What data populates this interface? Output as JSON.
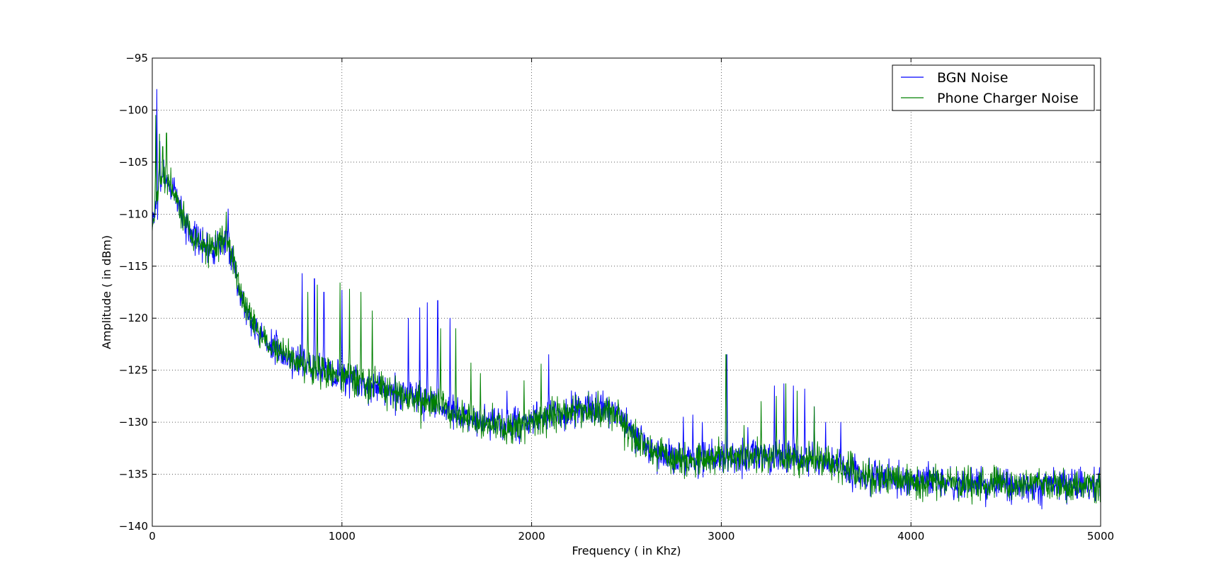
{
  "chart_data": {
    "type": "line",
    "xlabel": "Frequency ( in Khz)",
    "ylabel": "Amplitude ( in dBm)",
    "xlim": [
      0,
      5000
    ],
    "ylim": [
      -140,
      -95
    ],
    "xticks": [
      0,
      1000,
      2000,
      3000,
      4000,
      5000
    ],
    "xtick_labels": [
      "0",
      "1000",
      "2000",
      "3000",
      "4000",
      "5000"
    ],
    "yticks": [
      -95,
      -100,
      -105,
      -110,
      -115,
      -120,
      -125,
      -130,
      -135,
      -140
    ],
    "ytick_labels": [
      "−95",
      "−100",
      "−105",
      "−110",
      "−115",
      "−120",
      "−125",
      "−130",
      "−135",
      "−140"
    ],
    "grid": true,
    "legend_position": "top-right",
    "baseline": {
      "x": [
        0,
        20,
        40,
        60,
        80,
        100,
        130,
        160,
        200,
        240,
        280,
        300,
        330,
        360,
        390,
        410,
        430,
        450,
        480,
        520,
        560,
        600,
        650,
        700,
        750,
        800,
        850,
        900,
        950,
        1000,
        1050,
        1100,
        1150,
        1200,
        1250,
        1300,
        1350,
        1400,
        1450,
        1500,
        1550,
        1600,
        1650,
        1700,
        1750,
        1800,
        1850,
        1900,
        1950,
        2000,
        2050,
        2100,
        2150,
        2200,
        2250,
        2300,
        2350,
        2400,
        2450,
        2500,
        2550,
        2600,
        2650,
        2700,
        2750,
        2800,
        2850,
        2900,
        2950,
        3000,
        3100,
        3200,
        3300,
        3400,
        3500,
        3600,
        3700,
        3800,
        3900,
        4000,
        4100,
        4200,
        4300,
        4400,
        4500,
        4600,
        4700,
        4800,
        4900,
        5000
      ],
      "y": [
        -111,
        -109,
        -107,
        -106.5,
        -107,
        -107.5,
        -108.5,
        -110,
        -111.5,
        -112.5,
        -113,
        -113.2,
        -113,
        -112.8,
        -112.5,
        -113,
        -114.5,
        -116.5,
        -118.5,
        -120.2,
        -121.5,
        -122.3,
        -123,
        -123.6,
        -124,
        -124.3,
        -124.7,
        -125,
        -125.3,
        -125.6,
        -125.9,
        -126.1,
        -126.4,
        -126.6,
        -126.9,
        -127.1,
        -127.4,
        -127.7,
        -128,
        -128.4,
        -128.8,
        -129.1,
        -129.4,
        -129.7,
        -129.9,
        -130.1,
        -130.3,
        -130.4,
        -130.3,
        -129.9,
        -129.5,
        -129.2,
        -129.1,
        -129,
        -128.9,
        -128.8,
        -128.8,
        -128.9,
        -129.3,
        -130.2,
        -131.3,
        -132.2,
        -132.8,
        -133.2,
        -133.5,
        -133.6,
        -133.6,
        -133.6,
        -133.5,
        -133.5,
        -133.4,
        -133.3,
        -133.3,
        -133.4,
        -133.6,
        -134.1,
        -134.7,
        -135.1,
        -135.4,
        -135.6,
        -135.7,
        -135.8,
        -135.9,
        -135.9,
        -136,
        -136,
        -136,
        -136,
        -136,
        -136
      ]
    },
    "series": [
      {
        "name": "BGN Noise",
        "color": "#0000ff",
        "noise": 0.75,
        "seed": 7,
        "peaks": [
          [
            24,
            -98
          ],
          [
            40,
            -103
          ],
          [
            400,
            -109.5
          ],
          [
            790,
            -115.7
          ],
          [
            855,
            -116.2
          ],
          [
            905,
            -117.5
          ],
          [
            1000,
            -117.3
          ],
          [
            1350,
            -120
          ],
          [
            1410,
            -119
          ],
          [
            1450,
            -118.5
          ],
          [
            1505,
            -118.3
          ],
          [
            1570,
            -120
          ],
          [
            1870,
            -127
          ],
          [
            2090,
            -123.5
          ],
          [
            2300,
            -127
          ],
          [
            2800,
            -129.5
          ],
          [
            2850,
            -129.3
          ],
          [
            2900,
            -130
          ],
          [
            3030,
            -123.5
          ],
          [
            3140,
            -130.5
          ],
          [
            3280,
            -126.5
          ],
          [
            3330,
            -126.3
          ],
          [
            3380,
            -126.5
          ],
          [
            3440,
            -126.8
          ],
          [
            3490,
            -128.5
          ],
          [
            3550,
            -130
          ],
          [
            3630,
            -130
          ]
        ]
      },
      {
        "name": "Phone Charger Noise",
        "color": "#008000",
        "noise": 0.75,
        "seed": 19,
        "peaks": [
          [
            18,
            -100.5
          ],
          [
            38,
            -102.3
          ],
          [
            55,
            -103.5
          ],
          [
            75,
            -102.2
          ],
          [
            390,
            -109.8
          ],
          [
            820,
            -117.5
          ],
          [
            870,
            -116.8
          ],
          [
            990,
            -116.6
          ],
          [
            1040,
            -117.2
          ],
          [
            1100,
            -117.5
          ],
          [
            1160,
            -119.3
          ],
          [
            1520,
            -121
          ],
          [
            1600,
            -121
          ],
          [
            1680,
            -124.3
          ],
          [
            1730,
            -125.3
          ],
          [
            1960,
            -126
          ],
          [
            2050,
            -124.4
          ],
          [
            2350,
            -127
          ],
          [
            3025,
            -123.5
          ],
          [
            3120,
            -130.3
          ],
          [
            3210,
            -128
          ],
          [
            3290,
            -127.5
          ],
          [
            3340,
            -126.3
          ],
          [
            3400,
            -127
          ],
          [
            3490,
            -128.5
          ]
        ]
      }
    ]
  }
}
